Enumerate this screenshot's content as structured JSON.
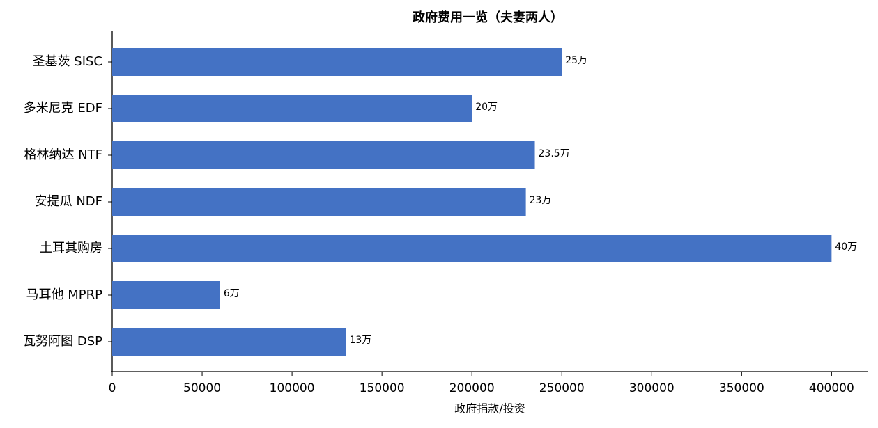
{
  "chart_data": {
    "type": "barh",
    "title": "政府费用一览（夫妻两人）",
    "xlabel": "政府捐款/投资",
    "categories": [
      "圣基茨 SISC",
      "多米尼克 EDF",
      "格林纳达 NTF",
      "安提瓜 NDF",
      "土耳其购房",
      "马耳他 MPRP",
      "瓦努阿图 DSP"
    ],
    "values": [
      250000,
      200000,
      235000,
      230000,
      400000,
      60000,
      130000
    ],
    "value_labels": [
      "25万",
      "20万",
      "23.5万",
      "23万",
      "40万",
      "6万",
      "13万"
    ],
    "color": "#4472c4",
    "xlim": [
      0,
      420000
    ],
    "xticks": [
      0,
      50000,
      100000,
      150000,
      200000,
      250000,
      300000,
      350000,
      400000
    ],
    "grid": false
  }
}
